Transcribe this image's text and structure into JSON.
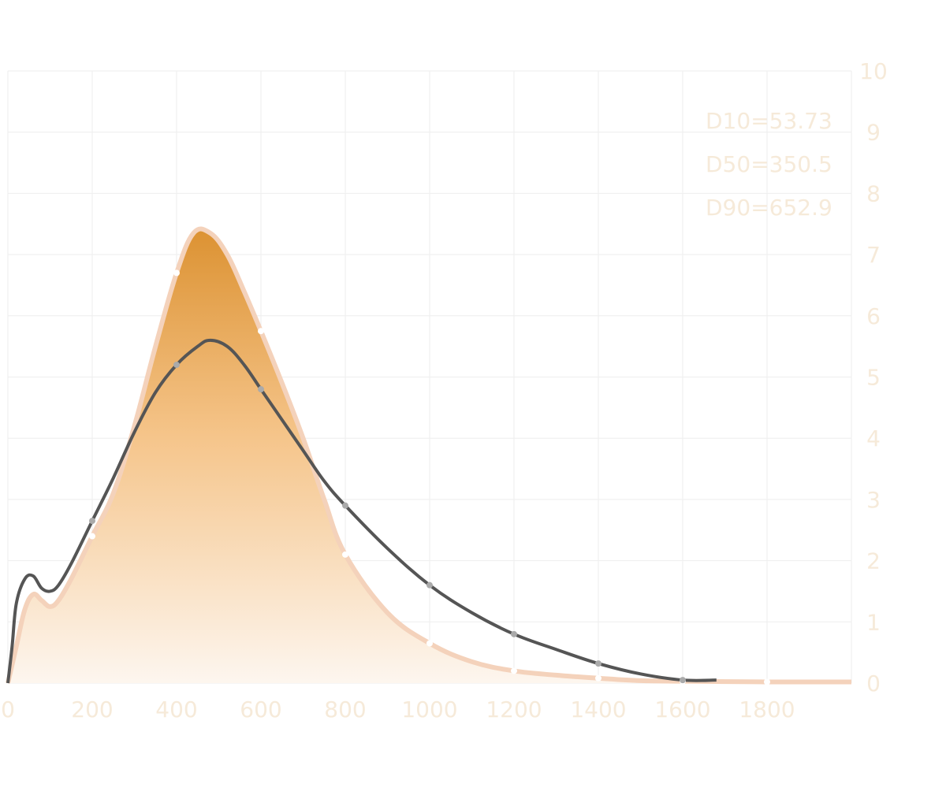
{
  "chart_data": {
    "type": "area",
    "title": "",
    "xlabel": "",
    "ylabel": "",
    "xlim": [
      0,
      2000
    ],
    "ylim": [
      0,
      10
    ],
    "x_ticks": [
      0,
      200,
      400,
      600,
      800,
      1000,
      1200,
      1400,
      1600,
      1800
    ],
    "x_tick_labels": [
      "0",
      "200",
      "400",
      "600",
      "800",
      "1000",
      "1200",
      "1400",
      "1600",
      "1800"
    ],
    "y_ticks": [
      0,
      1,
      2,
      3,
      4,
      5,
      6,
      7,
      8,
      9,
      10
    ],
    "y_tick_labels": [
      "0",
      "1",
      "2",
      "3",
      "4",
      "5",
      "6",
      "7",
      "8",
      "9",
      "10"
    ],
    "y_axis_side": "right",
    "grid": true,
    "legend": "none",
    "annotations": [
      "D10=53.73",
      "D50=350.5",
      "D90=652.9"
    ],
    "colors": {
      "area_top": "#dc9232",
      "area_bottom": "#fdf6ef",
      "area_outline": "#f4d2bb",
      "line": "#555555",
      "line_marker": "#aaaaaa",
      "area_marker": "#ffffff",
      "grid": "#eeeeee",
      "tick_text": "#f6ead9"
    },
    "series": [
      {
        "type": "area",
        "points": [
          [
            0,
            0
          ],
          [
            20,
            0.6
          ],
          [
            40,
            1.2
          ],
          [
            60,
            1.45
          ],
          [
            80,
            1.35
          ],
          [
            100,
            1.25
          ],
          [
            120,
            1.35
          ],
          [
            150,
            1.7
          ],
          [
            200,
            2.4
          ],
          [
            250,
            3.1
          ],
          [
            300,
            4.2
          ],
          [
            350,
            5.5
          ],
          [
            400,
            6.7
          ],
          [
            440,
            7.35
          ],
          [
            480,
            7.35
          ],
          [
            520,
            7.0
          ],
          [
            560,
            6.4
          ],
          [
            600,
            5.75
          ],
          [
            650,
            4.9
          ],
          [
            700,
            4.0
          ],
          [
            750,
            3.0
          ],
          [
            800,
            2.1
          ],
          [
            900,
            1.15
          ],
          [
            1000,
            0.65
          ],
          [
            1100,
            0.35
          ],
          [
            1200,
            0.2
          ],
          [
            1300,
            0.13
          ],
          [
            1400,
            0.08
          ],
          [
            1500,
            0.04
          ],
          [
            1600,
            0.03
          ],
          [
            1800,
            0.02
          ],
          [
            2000,
            0.02
          ]
        ],
        "markers": [
          [
            200,
            2.4
          ],
          [
            400,
            6.7
          ],
          [
            600,
            5.75
          ],
          [
            800,
            2.1
          ],
          [
            1000,
            0.65
          ],
          [
            1200,
            0.2
          ],
          [
            1400,
            0.08
          ],
          [
            1600,
            0.03
          ],
          [
            1800,
            0.02
          ]
        ]
      },
      {
        "type": "line",
        "points": [
          [
            0,
            0
          ],
          [
            10,
            0.6
          ],
          [
            20,
            1.3
          ],
          [
            40,
            1.7
          ],
          [
            60,
            1.75
          ],
          [
            80,
            1.55
          ],
          [
            100,
            1.5
          ],
          [
            120,
            1.6
          ],
          [
            150,
            1.95
          ],
          [
            200,
            2.65
          ],
          [
            250,
            3.35
          ],
          [
            300,
            4.1
          ],
          [
            350,
            4.75
          ],
          [
            400,
            5.2
          ],
          [
            450,
            5.5
          ],
          [
            480,
            5.6
          ],
          [
            520,
            5.5
          ],
          [
            560,
            5.2
          ],
          [
            600,
            4.8
          ],
          [
            650,
            4.3
          ],
          [
            700,
            3.8
          ],
          [
            750,
            3.3
          ],
          [
            800,
            2.9
          ],
          [
            900,
            2.2
          ],
          [
            1000,
            1.6
          ],
          [
            1100,
            1.15
          ],
          [
            1200,
            0.8
          ],
          [
            1300,
            0.55
          ],
          [
            1400,
            0.32
          ],
          [
            1500,
            0.15
          ],
          [
            1600,
            0.05
          ],
          [
            1680,
            0.05
          ]
        ],
        "markers": [
          [
            200,
            2.65
          ],
          [
            400,
            5.2
          ],
          [
            600,
            4.8
          ],
          [
            800,
            2.9
          ],
          [
            1000,
            1.6
          ],
          [
            1200,
            0.8
          ],
          [
            1400,
            0.32
          ],
          [
            1600,
            0.05
          ]
        ]
      }
    ]
  }
}
